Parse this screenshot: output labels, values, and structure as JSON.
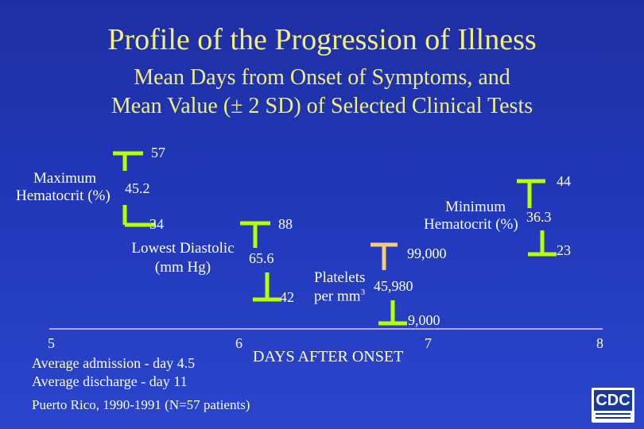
{
  "title": "Profile of the Progression of Illness",
  "subtitle_line1": "Mean Days from Onset of Symptoms, and",
  "subtitle_line2": "Mean Value (± 2 SD) of Selected Clinical Tests",
  "measures": {
    "max_hematocrit": {
      "label_line1": "Maximum",
      "label_line2": "Hematocrit (%)",
      "upper": "57",
      "mean": "45.2",
      "lower": "34"
    },
    "lowest_diastolic": {
      "label_line1": "Lowest Diastolic",
      "label_line2": "(mm Hg)",
      "upper": "88",
      "mean": "65.6",
      "lower": "42"
    },
    "platelets": {
      "label_line1": "Platelets",
      "label_line2_base": "per mm",
      "label_line2_sup": "3",
      "upper": "99,000",
      "mean": "45,980",
      "lower": "9,000"
    },
    "min_hematocrit": {
      "label_line1": "Minimum",
      "label_line2": "Hematocrit (%)",
      "upper": "44",
      "mean": "36.3",
      "lower": "23"
    }
  },
  "axis": {
    "ticks": [
      "5",
      "6",
      "7",
      "8"
    ],
    "label": "DAYS AFTER ONSET",
    "color": "#b8a6ff"
  },
  "notes": {
    "admission": "Average admission - day 4.5",
    "discharge": "Average discharge - day 11",
    "source": "Puerto Rico, 1990-1991 (N=57 patients)"
  },
  "logo": {
    "text": "CDC"
  },
  "colors": {
    "title": "#f3f07a",
    "hematocrit_max_bar": "#b8ff00",
    "diastolic_bar": "#b8ff00",
    "platelets_bar": "#f7c97a",
    "hematocrit_min_bar": "#b8ff00"
  }
}
